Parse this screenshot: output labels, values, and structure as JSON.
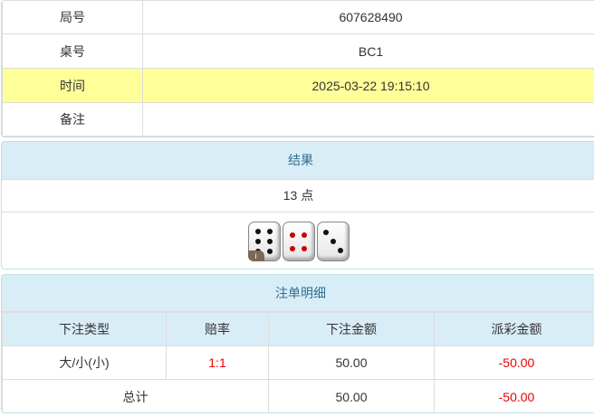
{
  "info": {
    "rows": [
      {
        "label": "局号",
        "value": "607628490"
      },
      {
        "label": "桌号",
        "value": "BC1"
      },
      {
        "label": "时间",
        "value": "2025-03-22 19:15:10"
      },
      {
        "label": "备注",
        "value": ""
      }
    ]
  },
  "result": {
    "title": "结果",
    "points": "13 点",
    "dice": [
      6,
      4,
      3
    ],
    "info_badge": "i"
  },
  "bets": {
    "title": "注单明细",
    "headers": [
      "下注类型",
      "赔率",
      "下注金额",
      "派彩金额"
    ],
    "rows": [
      {
        "type": "大/小(小)",
        "odds": "1:1",
        "amount": "50.00",
        "payout": "-50.00"
      }
    ],
    "total": {
      "label": "总计",
      "amount": "50.00",
      "payout": "-50.00"
    }
  },
  "colors": {
    "highlight": "#ffff99",
    "header": "#d9edf7",
    "negative": "#e00000"
  }
}
